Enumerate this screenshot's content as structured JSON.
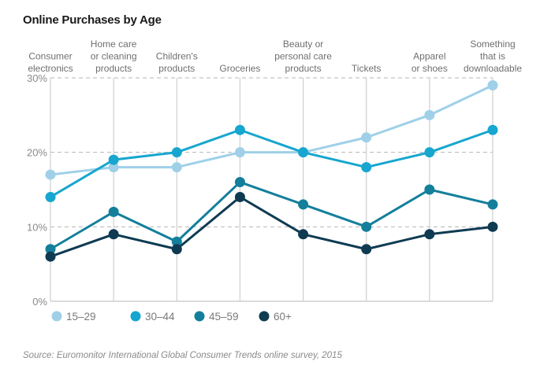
{
  "chart_data": {
    "type": "line",
    "title": "Online Purchases by Age",
    "source": "Source: Euromonitor International Global Consumer Trends online survey, 2015",
    "categories": [
      [
        "Consumer",
        "electronics"
      ],
      [
        "Home care",
        "or cleaning",
        "products"
      ],
      [
        "Children's",
        "products"
      ],
      [
        "Groceries"
      ],
      [
        "Beauty or",
        "personal care",
        "products"
      ],
      [
        "Tickets"
      ],
      [
        "Apparel",
        "or shoes"
      ],
      [
        "Something",
        "that is",
        "downloadable"
      ]
    ],
    "xlabel": "",
    "ylabel": "",
    "ylim": [
      0,
      30
    ],
    "yticks": [
      0,
      10,
      20,
      30
    ],
    "ytick_labels": [
      "0%",
      "10%",
      "20%",
      "30%"
    ],
    "grid": true,
    "legend_position": "bottom-left",
    "series": [
      {
        "name": "15–29",
        "color": "#9fd0e8",
        "values": [
          17,
          18,
          18,
          20,
          20,
          22,
          25,
          29
        ]
      },
      {
        "name": "30–44",
        "color": "#16a6cf",
        "values": [
          14,
          19,
          20,
          23,
          20,
          18,
          20,
          23
        ]
      },
      {
        "name": "45–59",
        "color": "#137f9b",
        "values": [
          7,
          12,
          8,
          16,
          13,
          10,
          15,
          13
        ]
      },
      {
        "name": "60+",
        "color": "#0e3b52",
        "values": [
          6,
          9,
          7,
          14,
          9,
          7,
          9,
          10
        ]
      }
    ]
  }
}
